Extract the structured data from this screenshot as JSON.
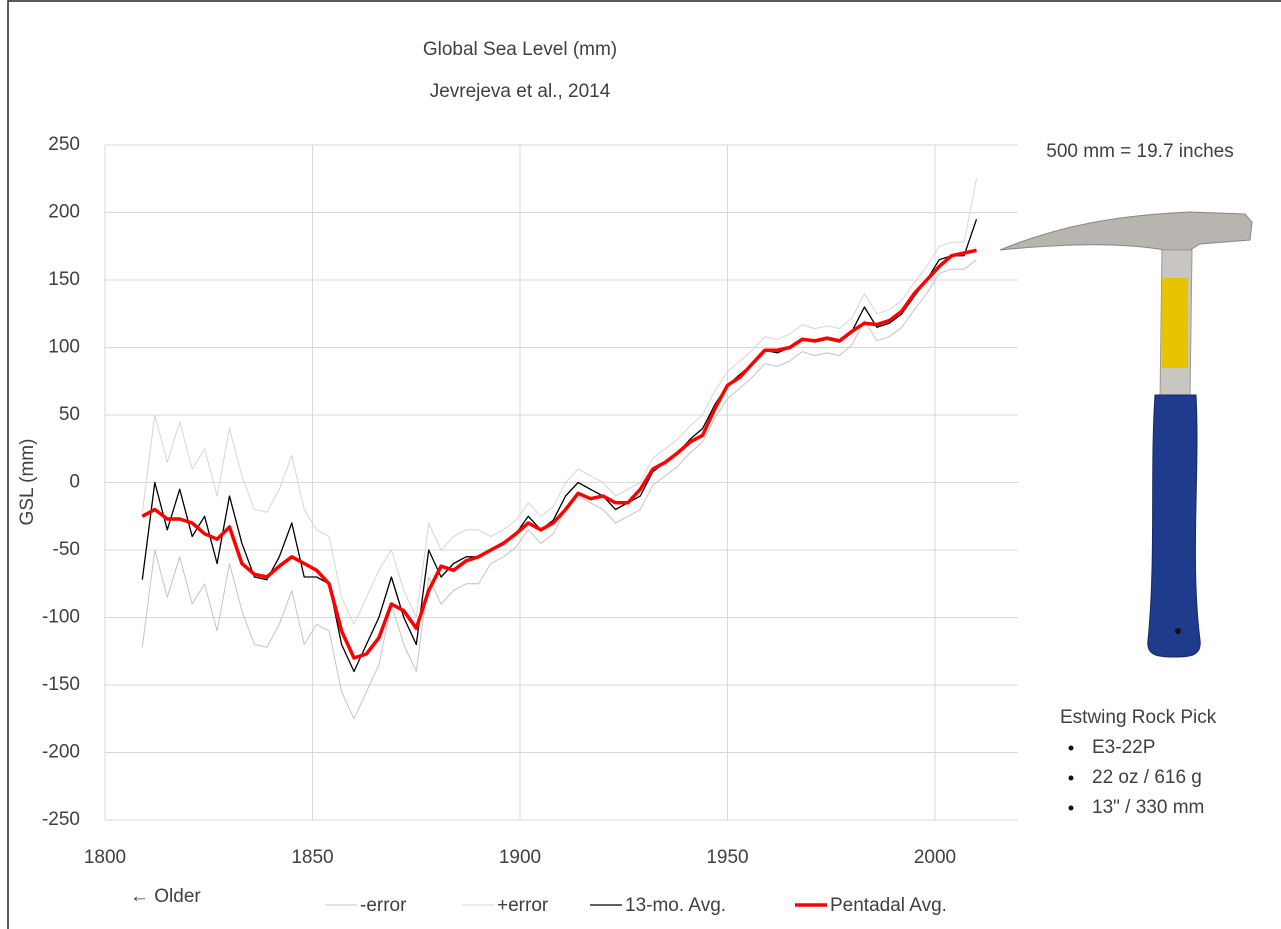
{
  "chart_data": {
    "type": "line",
    "title": "Global Sea Level (mm)",
    "subtitle": "Jevrejeva et al., 2014",
    "y_label": "GSL (mm)",
    "annotations": [
      "← Older"
    ],
    "x": [
      1809,
      1812,
      1815,
      1818,
      1821,
      1824,
      1827,
      1830,
      1833,
      1836,
      1839,
      1842,
      1845,
      1848,
      1851,
      1854,
      1857,
      1860,
      1863,
      1866,
      1869,
      1872,
      1875,
      1878,
      1881,
      1884,
      1887,
      1890,
      1893,
      1896,
      1899,
      1902,
      1905,
      1908,
      1911,
      1914,
      1917,
      1920,
      1923,
      1926,
      1929,
      1932,
      1935,
      1938,
      1941,
      1944,
      1947,
      1950,
      1953,
      1956,
      1959,
      1962,
      1965,
      1968,
      1971,
      1974,
      1977,
      1980,
      1983,
      1986,
      1989,
      1992,
      1995,
      1998,
      2001,
      2004,
      2007,
      2010
    ],
    "series": [
      {
        "name": "-error",
        "color": "#c4c4c4",
        "width": 1,
        "values": [
          -122,
          -50,
          -85,
          -55,
          -90,
          -75,
          -110,
          -60,
          -95,
          -120,
          -122,
          -105,
          -80,
          -120,
          -105,
          -110,
          -155,
          -175,
          -155,
          -135,
          -90,
          -120,
          -140,
          -70,
          -90,
          -80,
          -75,
          -75,
          -60,
          -55,
          -48,
          -35,
          -45,
          -38,
          -20,
          -10,
          -15,
          -20,
          -30,
          -25,
          -20,
          -2,
          5,
          12,
          22,
          30,
          48,
          62,
          70,
          78,
          88,
          86,
          90,
          97,
          94,
          96,
          94,
          102,
          120,
          105,
          108,
          115,
          128,
          140,
          155,
          158,
          158,
          165
        ]
      },
      {
        "name": "+error",
        "color": "#d6d6d6",
        "width": 1,
        "values": [
          -22,
          50,
          15,
          45,
          10,
          25,
          -10,
          40,
          5,
          -20,
          -22,
          -5,
          20,
          -20,
          -35,
          -40,
          -85,
          -105,
          -85,
          -65,
          -50,
          -80,
          -100,
          -30,
          -50,
          -40,
          -35,
          -35,
          -40,
          -35,
          -28,
          -15,
          -25,
          -18,
          0,
          10,
          5,
          0,
          -10,
          -5,
          0,
          18,
          25,
          32,
          42,
          50,
          68,
          82,
          90,
          98,
          108,
          106,
          110,
          117,
          114,
          116,
          114,
          122,
          140,
          125,
          128,
          135,
          148,
          160,
          175,
          178,
          178,
          225
        ]
      },
      {
        "name": "13-mo. Avg.",
        "color": "#000000",
        "width": 1.3,
        "values": [
          -72,
          0,
          -35,
          -5,
          -40,
          -25,
          -60,
          -10,
          -45,
          -70,
          -72,
          -55,
          -30,
          -70,
          -70,
          -75,
          -120,
          -140,
          -120,
          -100,
          -70,
          -100,
          -120,
          -50,
          -70,
          -60,
          -55,
          -55,
          -50,
          -45,
          -38,
          -25,
          -35,
          -28,
          -10,
          0,
          -5,
          -10,
          -20,
          -15,
          -10,
          8,
          15,
          22,
          32,
          40,
          58,
          72,
          80,
          88,
          98,
          96,
          100,
          107,
          104,
          106,
          104,
          112,
          130,
          115,
          118,
          125,
          138,
          150,
          165,
          168,
          168,
          195
        ]
      },
      {
        "name": "Pentadal Avg.",
        "color": "#ff0000",
        "width": 3.5,
        "values": [
          -25,
          -20,
          -27,
          -27,
          -30,
          -38,
          -42,
          -33,
          -60,
          -68,
          -70,
          -62,
          -55,
          -60,
          -65,
          -75,
          -110,
          -130,
          -127,
          -115,
          -90,
          -95,
          -108,
          -80,
          -62,
          -65,
          -58,
          -55,
          -50,
          -45,
          -38,
          -30,
          -35,
          -30,
          -20,
          -8,
          -12,
          -10,
          -15,
          -15,
          -5,
          10,
          15,
          22,
          30,
          35,
          55,
          72,
          78,
          88,
          98,
          98,
          100,
          106,
          105,
          107,
          105,
          112,
          118,
          117,
          120,
          127,
          140,
          150,
          160,
          168,
          170,
          172
        ]
      }
    ],
    "xlim": [
      1800,
      2020
    ],
    "xticks": [
      1800,
      1850,
      1900,
      1950,
      2000
    ],
    "ylim": [
      -250,
      250
    ],
    "yticks": [
      -250,
      -200,
      -150,
      -100,
      -50,
      0,
      50,
      100,
      150,
      200,
      250
    ],
    "grid": true,
    "legend": "bottom"
  },
  "side_panel": {
    "scale_note": "500 mm = 19.7 inches",
    "title": "Estwing Rock Pick",
    "items": [
      "E3-22P",
      "22 oz / 616 g",
      "13\" / 330 mm"
    ]
  }
}
